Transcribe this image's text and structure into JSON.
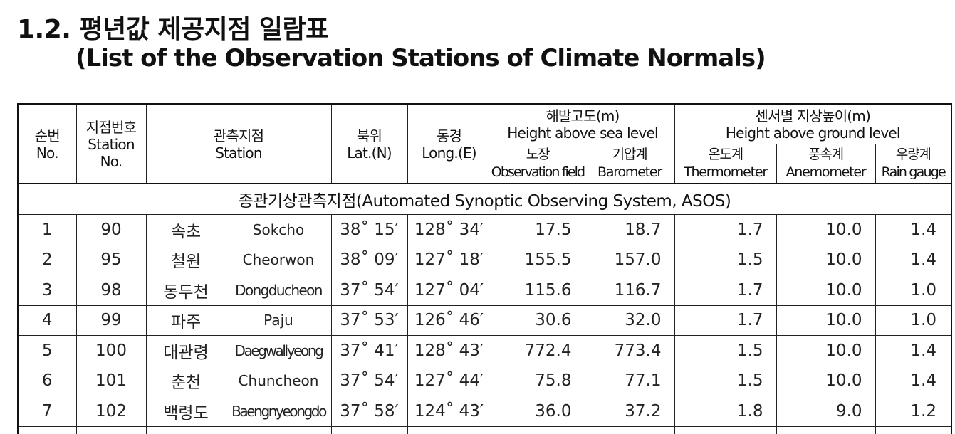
{
  "title": {
    "line1": "1.2. 평년값 제공지점 일람표",
    "line2": "(List of the Observation Stations of Climate Normals)"
  },
  "headers": {
    "no": [
      "순번",
      "No."
    ],
    "station_no": [
      "지점번호",
      "Station",
      "No."
    ],
    "station": [
      "관측지점",
      "Station"
    ],
    "lat": [
      "북위",
      "Lat.(N)"
    ],
    "long": [
      "동경",
      "Long.(E)"
    ],
    "height_sea": [
      "해발고도(m)",
      "Height above sea level"
    ],
    "height_ground": [
      "센서별 지상높이(m)",
      "Height above ground level"
    ],
    "obs_field": [
      "노장",
      "Observation field"
    ],
    "barometer": [
      "기압계",
      "Barometer"
    ],
    "thermometer": [
      "온도계",
      "Thermometer"
    ],
    "anemometer": [
      "풍속계",
      "Anemometer"
    ],
    "rain_gauge": [
      "우량계",
      "Rain gauge"
    ]
  },
  "section_title": "종관기상관측지점(Automated Synoptic Observing System, ASOS)",
  "rows": [
    {
      "no": "1",
      "station_no": "90",
      "ko": "속초",
      "en": "Sokcho",
      "lat": "38˚ 15′",
      "long": "128˚ 34′",
      "field": "17.5",
      "baro": "18.7",
      "thermo": "1.7",
      "anemo": "10.0",
      "rain": "1.4"
    },
    {
      "no": "2",
      "station_no": "95",
      "ko": "철원",
      "en": "Cheorwon",
      "lat": "38˚ 09′",
      "long": "127˚ 18′",
      "field": "155.5",
      "baro": "157.0",
      "thermo": "1.5",
      "anemo": "10.0",
      "rain": "1.4"
    },
    {
      "no": "3",
      "station_no": "98",
      "ko": "동두천",
      "en": "Dongducheon",
      "lat": "37˚ 54′",
      "long": "127˚ 04′",
      "field": "115.6",
      "baro": "116.7",
      "thermo": "1.7",
      "anemo": "10.0",
      "rain": "1.0"
    },
    {
      "no": "4",
      "station_no": "99",
      "ko": "파주",
      "en": "Paju",
      "lat": "37˚ 53′",
      "long": "126˚ 46′",
      "field": "30.6",
      "baro": "32.0",
      "thermo": "1.7",
      "anemo": "10.0",
      "rain": "1.0"
    },
    {
      "no": "5",
      "station_no": "100",
      "ko": "대관령",
      "en": "Daegwallyeong",
      "lat": "37˚ 41′",
      "long": "128˚ 43′",
      "field": "772.4",
      "baro": "773.4",
      "thermo": "1.5",
      "anemo": "10.0",
      "rain": "1.4"
    },
    {
      "no": "6",
      "station_no": "101",
      "ko": "춘천",
      "en": "Chuncheon",
      "lat": "37˚ 54′",
      "long": "127˚ 44′",
      "field": "75.8",
      "baro": "77.1",
      "thermo": "1.5",
      "anemo": "10.0",
      "rain": "1.4"
    },
    {
      "no": "7",
      "station_no": "102",
      "ko": "백령도",
      "en": "Baengnyeongdo",
      "lat": "37˚ 58′",
      "long": "124˚ 43′",
      "field": "36.0",
      "baro": "37.2",
      "thermo": "1.8",
      "anemo": "9.0",
      "rain": "1.2"
    }
  ]
}
